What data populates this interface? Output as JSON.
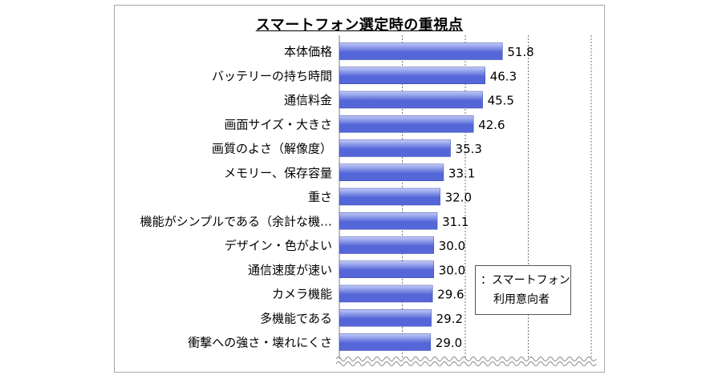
{
  "chart_data": {
    "type": "bar",
    "orientation": "horizontal",
    "title": "スマートフォン選定時の重視点",
    "categories": [
      "本体価格",
      "バッテリーの持ち時間",
      "通信料金",
      "画面サイズ・大きさ",
      "画質のよさ（解像度）",
      "メモリー、保存容量",
      "重さ",
      "機能がシンプルである（余計な機…",
      "デザイン・色がよい",
      "通信速度が速い",
      "カメラ機能",
      "多機能である",
      "衝撃への強さ・壊れにくさ"
    ],
    "values": [
      51.8,
      46.3,
      45.5,
      42.6,
      35.3,
      33.1,
      32.0,
      31.1,
      30.0,
      30.0,
      29.6,
      29.2,
      29.0
    ],
    "value_labels": [
      "51.8",
      "46.3",
      "45.5",
      "42.6",
      "35.3",
      "33.1",
      "32.0",
      "31.1",
      "30.0",
      "30.0",
      "29.6",
      "29.2",
      "29.0"
    ],
    "xlim": [
      0,
      80
    ],
    "grid": true,
    "axis_break": "bottom",
    "legend_position": "bottom-right",
    "bar_color": "#5466d8",
    "bar_color_light": "#c3ccf7"
  },
  "legend": {
    "line1": "：スマートフォン",
    "line2": "利用意向者"
  }
}
